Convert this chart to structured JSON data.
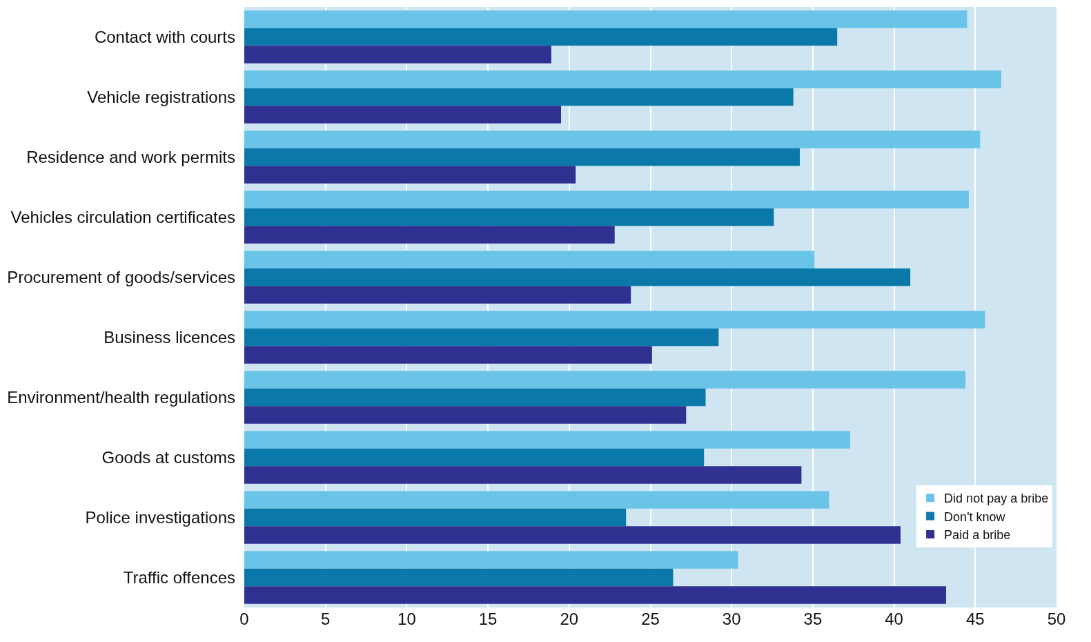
{
  "chart_data": {
    "type": "bar",
    "orientation": "horizontal",
    "categories": [
      "Contact with courts",
      "Vehicle registrations",
      "Residence and work permits",
      "Vehicles circulation certificates",
      "Procurement of goods/services",
      "Business licences",
      "Environment/health regulations",
      "Goods at customs",
      "Police investigations",
      "Traffic offences"
    ],
    "series": [
      {
        "name": "Did not pay a bribe",
        "color": "#6ac4e8",
        "values": [
          44.5,
          46.6,
          45.3,
          44.6,
          35.1,
          45.6,
          44.4,
          37.3,
          36.0,
          30.4
        ]
      },
      {
        "name": "Don't know",
        "color": "#0a78a8",
        "values": [
          36.5,
          33.8,
          34.2,
          32.6,
          41.0,
          29.2,
          28.4,
          28.3,
          23.5,
          26.4
        ]
      },
      {
        "name": "Paid a bribe",
        "color": "#303090",
        "values": [
          18.9,
          19.5,
          20.4,
          22.8,
          23.8,
          25.1,
          27.2,
          34.3,
          40.4,
          43.2
        ]
      }
    ],
    "xlim": [
      0,
      50
    ],
    "xticks": [
      0,
      5,
      10,
      15,
      20,
      25,
      30,
      35,
      40,
      45,
      50
    ],
    "grid": "x",
    "legend": "bottom right"
  }
}
